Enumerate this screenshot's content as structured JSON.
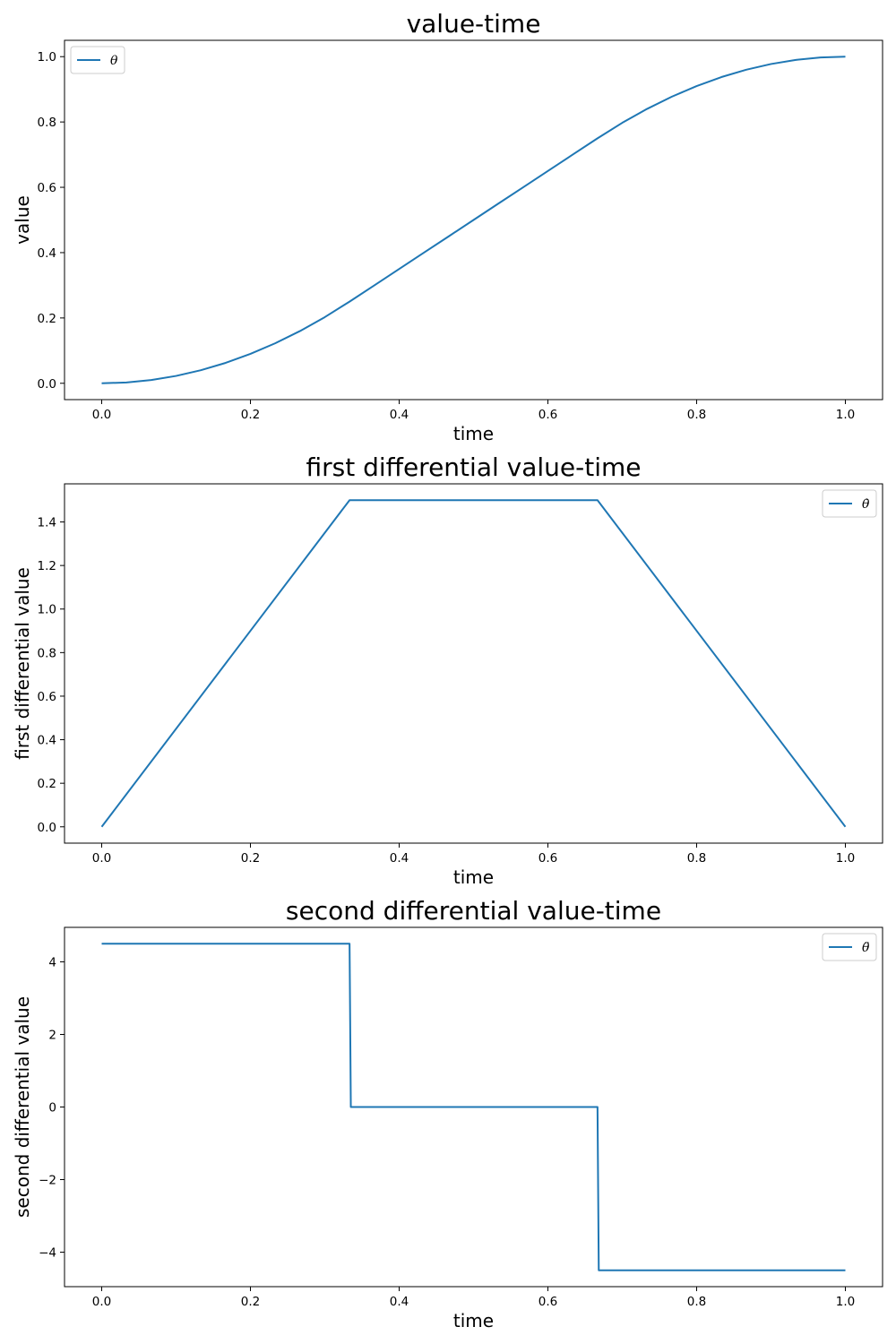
{
  "chart_data": [
    {
      "type": "line",
      "title": "value-time",
      "xlabel": "time",
      "ylabel": "value",
      "xlim": [
        -0.05,
        1.05
      ],
      "ylim": [
        -0.05,
        1.05
      ],
      "xticks": [
        0.0,
        0.2,
        0.4,
        0.6,
        0.8,
        1.0
      ],
      "xtick_labels": [
        "0.0",
        "0.2",
        "0.4",
        "0.6",
        "0.8",
        "1.0"
      ],
      "yticks": [
        0.0,
        0.2,
        0.4,
        0.6,
        0.8,
        1.0
      ],
      "ytick_labels": [
        "0.0",
        "0.2",
        "0.4",
        "0.6",
        "0.8",
        "1.0"
      ],
      "grid": false,
      "legend_position": "upper-left",
      "series": [
        {
          "name": "θ",
          "color": "#1f77b4",
          "x": [
            0.0,
            0.0333,
            0.0667,
            0.1,
            0.1333,
            0.1667,
            0.2,
            0.2333,
            0.2667,
            0.3,
            0.3333,
            0.3667,
            0.4,
            0.4333,
            0.4667,
            0.5,
            0.5333,
            0.5667,
            0.6,
            0.6333,
            0.6667,
            0.7,
            0.7333,
            0.7667,
            0.8,
            0.8333,
            0.8667,
            0.9,
            0.9333,
            0.9667,
            1.0
          ],
          "values": [
            0.0,
            0.0025,
            0.01,
            0.0225,
            0.04,
            0.0625,
            0.09,
            0.1225,
            0.16,
            0.2025,
            0.25,
            0.3,
            0.35,
            0.4,
            0.45,
            0.5,
            0.55,
            0.6,
            0.65,
            0.7,
            0.75,
            0.7975,
            0.84,
            0.8775,
            0.91,
            0.9375,
            0.96,
            0.9775,
            0.99,
            0.9975,
            1.0
          ]
        }
      ]
    },
    {
      "type": "line",
      "title": "first differential value-time",
      "xlabel": "time",
      "ylabel": "first differential value",
      "xlim": [
        -0.05,
        1.05
      ],
      "ylim": [
        -0.075,
        1.575
      ],
      "xticks": [
        0.0,
        0.2,
        0.4,
        0.6,
        0.8,
        1.0
      ],
      "xtick_labels": [
        "0.0",
        "0.2",
        "0.4",
        "0.6",
        "0.8",
        "1.0"
      ],
      "yticks": [
        0.0,
        0.2,
        0.4,
        0.6,
        0.8,
        1.0,
        1.2,
        1.4
      ],
      "ytick_labels": [
        "0.0",
        "0.2",
        "0.4",
        "0.6",
        "0.8",
        "1.0",
        "1.2",
        "1.4"
      ],
      "grid": false,
      "legend_position": "upper-right",
      "series": [
        {
          "name": "θ̇",
          "color": "#1f77b4",
          "x": [
            0.0,
            0.3333,
            0.6667,
            1.0
          ],
          "values": [
            0.0,
            1.5,
            1.5,
            0.0
          ]
        }
      ]
    },
    {
      "type": "line",
      "title": "second differential value-time",
      "xlabel": "time",
      "ylabel": "second differential value",
      "xlim": [
        -0.05,
        1.05
      ],
      "ylim": [
        -4.95,
        4.95
      ],
      "xticks": [
        0.0,
        0.2,
        0.4,
        0.6,
        0.8,
        1.0
      ],
      "xtick_labels": [
        "0.0",
        "0.2",
        "0.4",
        "0.6",
        "0.8",
        "1.0"
      ],
      "yticks": [
        -4,
        -2,
        0,
        2,
        4
      ],
      "ytick_labels": [
        "−4",
        "−2",
        "0",
        "2",
        "4"
      ],
      "grid": false,
      "legend_position": "upper-right",
      "series": [
        {
          "name": "θ̈",
          "color": "#1f77b4",
          "x": [
            0.0,
            0.3333,
            0.335,
            0.6667,
            0.6684,
            1.0
          ],
          "values": [
            4.5,
            4.5,
            0.0,
            0.0,
            -4.5,
            -4.5
          ]
        }
      ]
    }
  ]
}
